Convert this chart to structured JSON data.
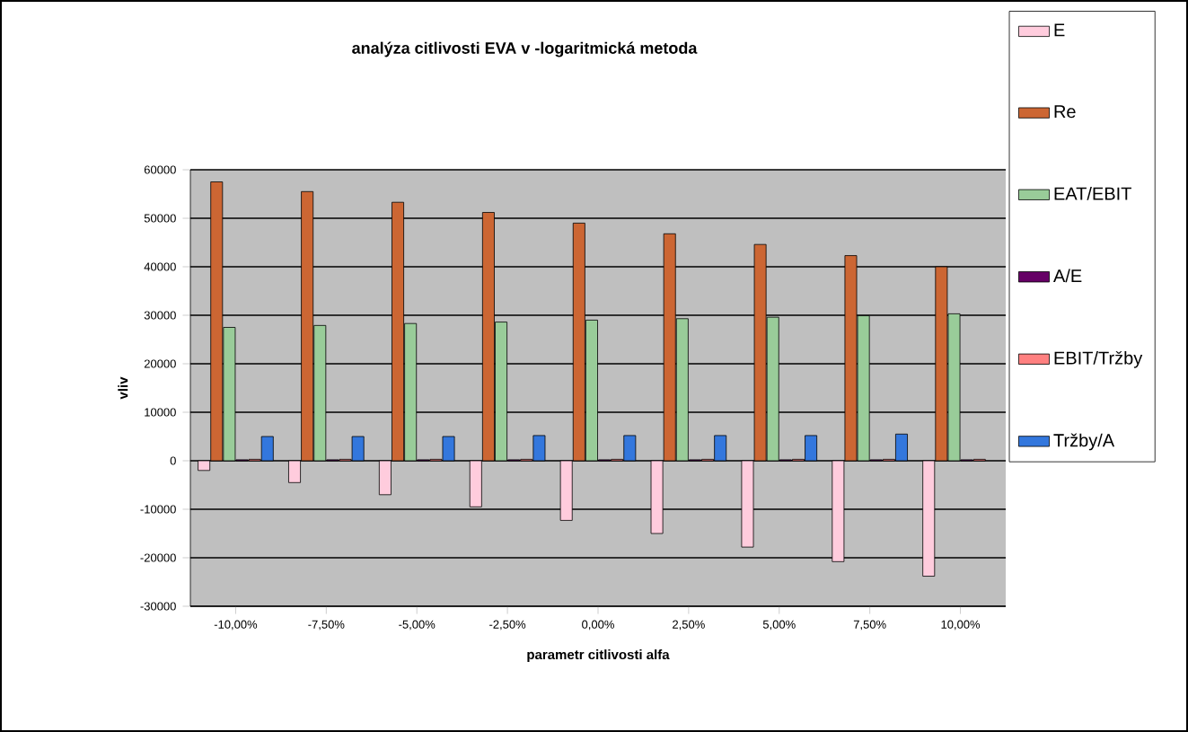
{
  "chart_data": {
    "type": "bar",
    "title": "analýza citlivosti EVA v -logaritmická metoda",
    "xlabel": "parametr citlivosti alfa",
    "ylabel": "vliv",
    "categories": [
      "-10,00%",
      "-7,50%",
      "-5,00%",
      "-2,50%",
      "0,00%",
      "2,50%",
      "5,00%",
      "7,50%",
      "10,00%"
    ],
    "series": [
      {
        "name": "E",
        "color": "#ffccdd",
        "values": [
          -2000,
          -4500,
          -7000,
          -9500,
          -12300,
          -15000,
          -17800,
          -20800,
          -23800
        ]
      },
      {
        "name": "Re",
        "color": "#cc6633",
        "values": [
          57500,
          55500,
          53300,
          51200,
          49000,
          46800,
          44600,
          42300,
          40000
        ]
      },
      {
        "name": "EAT/EBIT",
        "color": "#99cc99",
        "values": [
          27500,
          27900,
          28300,
          28600,
          29000,
          29300,
          29600,
          29900,
          30300
        ]
      },
      {
        "name": "A/E",
        "color": "#660066",
        "values": [
          200,
          200,
          200,
          200,
          200,
          200,
          200,
          200,
          200
        ]
      },
      {
        "name": "EBIT/Tržby",
        "color": "#ff8080",
        "values": [
          300,
          300,
          300,
          300,
          300,
          300,
          300,
          300,
          300
        ]
      },
      {
        "name": "Tržby/A",
        "color": "#3377dd",
        "values": [
          5000,
          5000,
          5000,
          5200,
          5200,
          5200,
          5200,
          5500,
          null
        ]
      }
    ],
    "ylim": [
      -30000,
      60000
    ],
    "yticks": [
      -30000,
      -20000,
      -10000,
      0,
      10000,
      20000,
      30000,
      40000,
      50000,
      60000
    ],
    "grid": "y",
    "legend": "right"
  }
}
